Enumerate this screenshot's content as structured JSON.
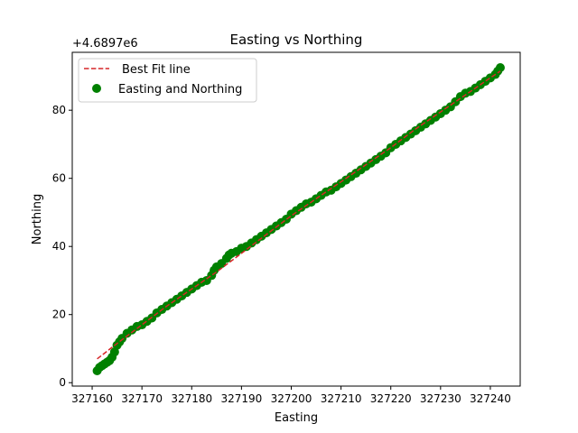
{
  "chart_data": {
    "type": "scatter",
    "title": "Easting vs Northing",
    "xlabel": "Easting",
    "ylabel": "Northing",
    "y_offset_label": "+4.6897e6",
    "xlim": [
      327156,
      327246
    ],
    "ylim": [
      -1,
      97
    ],
    "x_ticks": [
      327160,
      327170,
      327180,
      327190,
      327200,
      327210,
      327220,
      327230,
      327240
    ],
    "x_tick_labels": [
      "327160",
      "327170",
      "327180",
      "327190",
      "327200",
      "327210",
      "327220",
      "327230",
      "327240"
    ],
    "y_ticks": [
      0,
      20,
      40,
      60,
      80
    ],
    "y_tick_labels": [
      "0",
      "20",
      "40",
      "60",
      "80"
    ],
    "grid": false,
    "legend_position": "top-left",
    "series": [
      {
        "name": "Best Fit line",
        "kind": "line",
        "style": "dashed",
        "color": "#d62728",
        "x": [
          327161,
          327165,
          327170,
          327175,
          327180,
          327185,
          327190,
          327195,
          327200,
          327205,
          327210,
          327215,
          327220,
          327225,
          327230,
          327235,
          327240,
          327242
        ],
        "y": [
          7.0,
          11.5,
          17.0,
          22.5,
          27.5,
          32.5,
          38.0,
          43.5,
          49.0,
          54.0,
          59.0,
          64.0,
          69.0,
          74.5,
          79.5,
          84.5,
          89.5,
          91.5
        ]
      },
      {
        "name": "Easting and Northing",
        "kind": "scatter",
        "color": "#008000",
        "x": [
          327161,
          327161.5,
          327162,
          327162.5,
          327163,
          327163.5,
          327164,
          327164.5,
          327165,
          327165.5,
          327166,
          327167,
          327168,
          327169,
          327170,
          327171,
          327172,
          327173,
          327174,
          327175,
          327176,
          327177,
          327178,
          327179,
          327180,
          327181,
          327182,
          327183,
          327184,
          327184.5,
          327185,
          327186,
          327187,
          327187.5,
          327188,
          327189,
          327190,
          327191,
          327192,
          327193,
          327194,
          327195,
          327196,
          327197,
          327198,
          327199,
          327200,
          327201,
          327202,
          327203,
          327204,
          327205,
          327206,
          327207,
          327208,
          327209,
          327210,
          327211,
          327212,
          327213,
          327214,
          327215,
          327216,
          327217,
          327218,
          327219,
          327220,
          327221,
          327222,
          327223,
          327224,
          327225,
          327226,
          327227,
          327228,
          327229,
          327230,
          327231,
          327232,
          327233,
          327234,
          327235,
          327236,
          327237,
          327238,
          327239,
          327240,
          327241,
          327241.5,
          327242
        ],
        "y": [
          3.5,
          4.5,
          5.0,
          5.5,
          6.0,
          6.5,
          7.5,
          9.0,
          11.0,
          12.0,
          13.0,
          14.5,
          15.5,
          16.5,
          17.0,
          18.0,
          19.0,
          20.5,
          21.5,
          22.5,
          23.5,
          24.5,
          25.5,
          26.5,
          27.5,
          28.5,
          29.5,
          30.0,
          31.5,
          33.0,
          34.0,
          35.0,
          36.5,
          37.5,
          38.0,
          38.5,
          39.5,
          40.0,
          41.0,
          42.0,
          43.0,
          44.0,
          45.0,
          46.0,
          47.0,
          48.0,
          49.5,
          50.5,
          51.5,
          52.5,
          53.0,
          54.0,
          55.0,
          56.0,
          56.5,
          57.5,
          58.5,
          59.5,
          60.5,
          61.5,
          62.5,
          63.5,
          64.5,
          65.5,
          66.5,
          67.5,
          69.0,
          70.0,
          71.0,
          72.0,
          73.0,
          74.0,
          75.0,
          76.0,
          77.0,
          78.0,
          79.0,
          80.0,
          81.0,
          82.5,
          84.0,
          85.0,
          85.5,
          86.5,
          87.5,
          88.5,
          89.5,
          90.5,
          91.5,
          92.5
        ]
      }
    ]
  }
}
